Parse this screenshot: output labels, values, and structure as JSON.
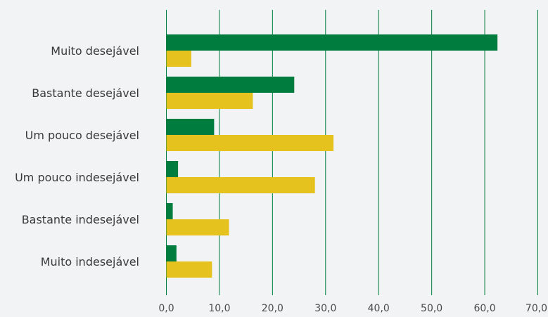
{
  "chart_data": {
    "type": "bar",
    "orientation": "horizontal",
    "categories": [
      "Muito desejável",
      "Bastante desejável",
      "Um pouco desejável",
      "Um pouco indesejável",
      "Bastante indesejável",
      "Muito indesejável"
    ],
    "series": [
      {
        "color": "#007c3e",
        "values": [
          62.4,
          24.1,
          9.0,
          2.2,
          1.2,
          1.9
        ]
      },
      {
        "color": "#e6c21e",
        "values": [
          4.7,
          16.3,
          31.5,
          28.0,
          11.8,
          8.6
        ]
      }
    ],
    "xlim": [
      0,
      70
    ],
    "xticks": [
      "0,0",
      "10,0",
      "20,0",
      "30,0",
      "40,0",
      "50,0",
      "60,0",
      "70,0"
    ],
    "grid": true,
    "gridline_color": "#007c3e",
    "title": "",
    "xlabel": "",
    "ylabel": ""
  }
}
